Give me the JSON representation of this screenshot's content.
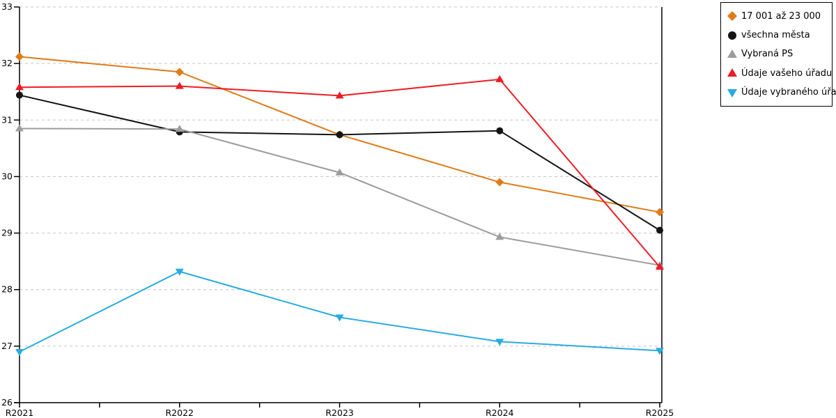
{
  "colors": {
    "background": "#FFFFFF",
    "axis": "#000000",
    "gridline": "#C4C4C4",
    "legend_border": "#000000",
    "tick_text": "#000000"
  },
  "chart_data": {
    "type": "line",
    "title": "",
    "xlabel": "",
    "ylabel": "",
    "categories": [
      "R2021",
      "R2022",
      "R2023",
      "R2024",
      "R2025"
    ],
    "yticks": [
      26,
      27,
      28,
      29,
      30,
      31,
      32,
      33
    ],
    "ylim": [
      26,
      33
    ],
    "grid": "horizontal-dashed",
    "minor_xticks_between_categories": true,
    "legend_position": "top-right",
    "series": [
      {
        "name": "17 001 až 23 000",
        "color": "#E07B17",
        "marker": "diamond",
        "values": [
          32.12,
          31.85,
          30.74,
          29.9,
          29.37
        ]
      },
      {
        "name": "všechna města",
        "color": "#141414",
        "marker": "circle",
        "values": [
          31.44,
          30.79,
          30.74,
          30.81,
          29.05
        ]
      },
      {
        "name": "Vybraná PS",
        "color": "#9C9C9C",
        "marker": "triangle-up",
        "values": [
          30.85,
          30.84,
          30.07,
          28.93,
          28.43
        ]
      },
      {
        "name": "Údaje vašeho úřadu",
        "color": "#EE1C23",
        "marker": "triangle-up",
        "values": [
          31.58,
          31.6,
          31.43,
          31.72,
          28.4
        ]
      },
      {
        "name": "Údaje vybraného úřadu",
        "color": "#29ABE2",
        "marker": "triangle-down",
        "values": [
          26.9,
          28.32,
          27.51,
          27.08,
          26.92
        ]
      }
    ]
  }
}
